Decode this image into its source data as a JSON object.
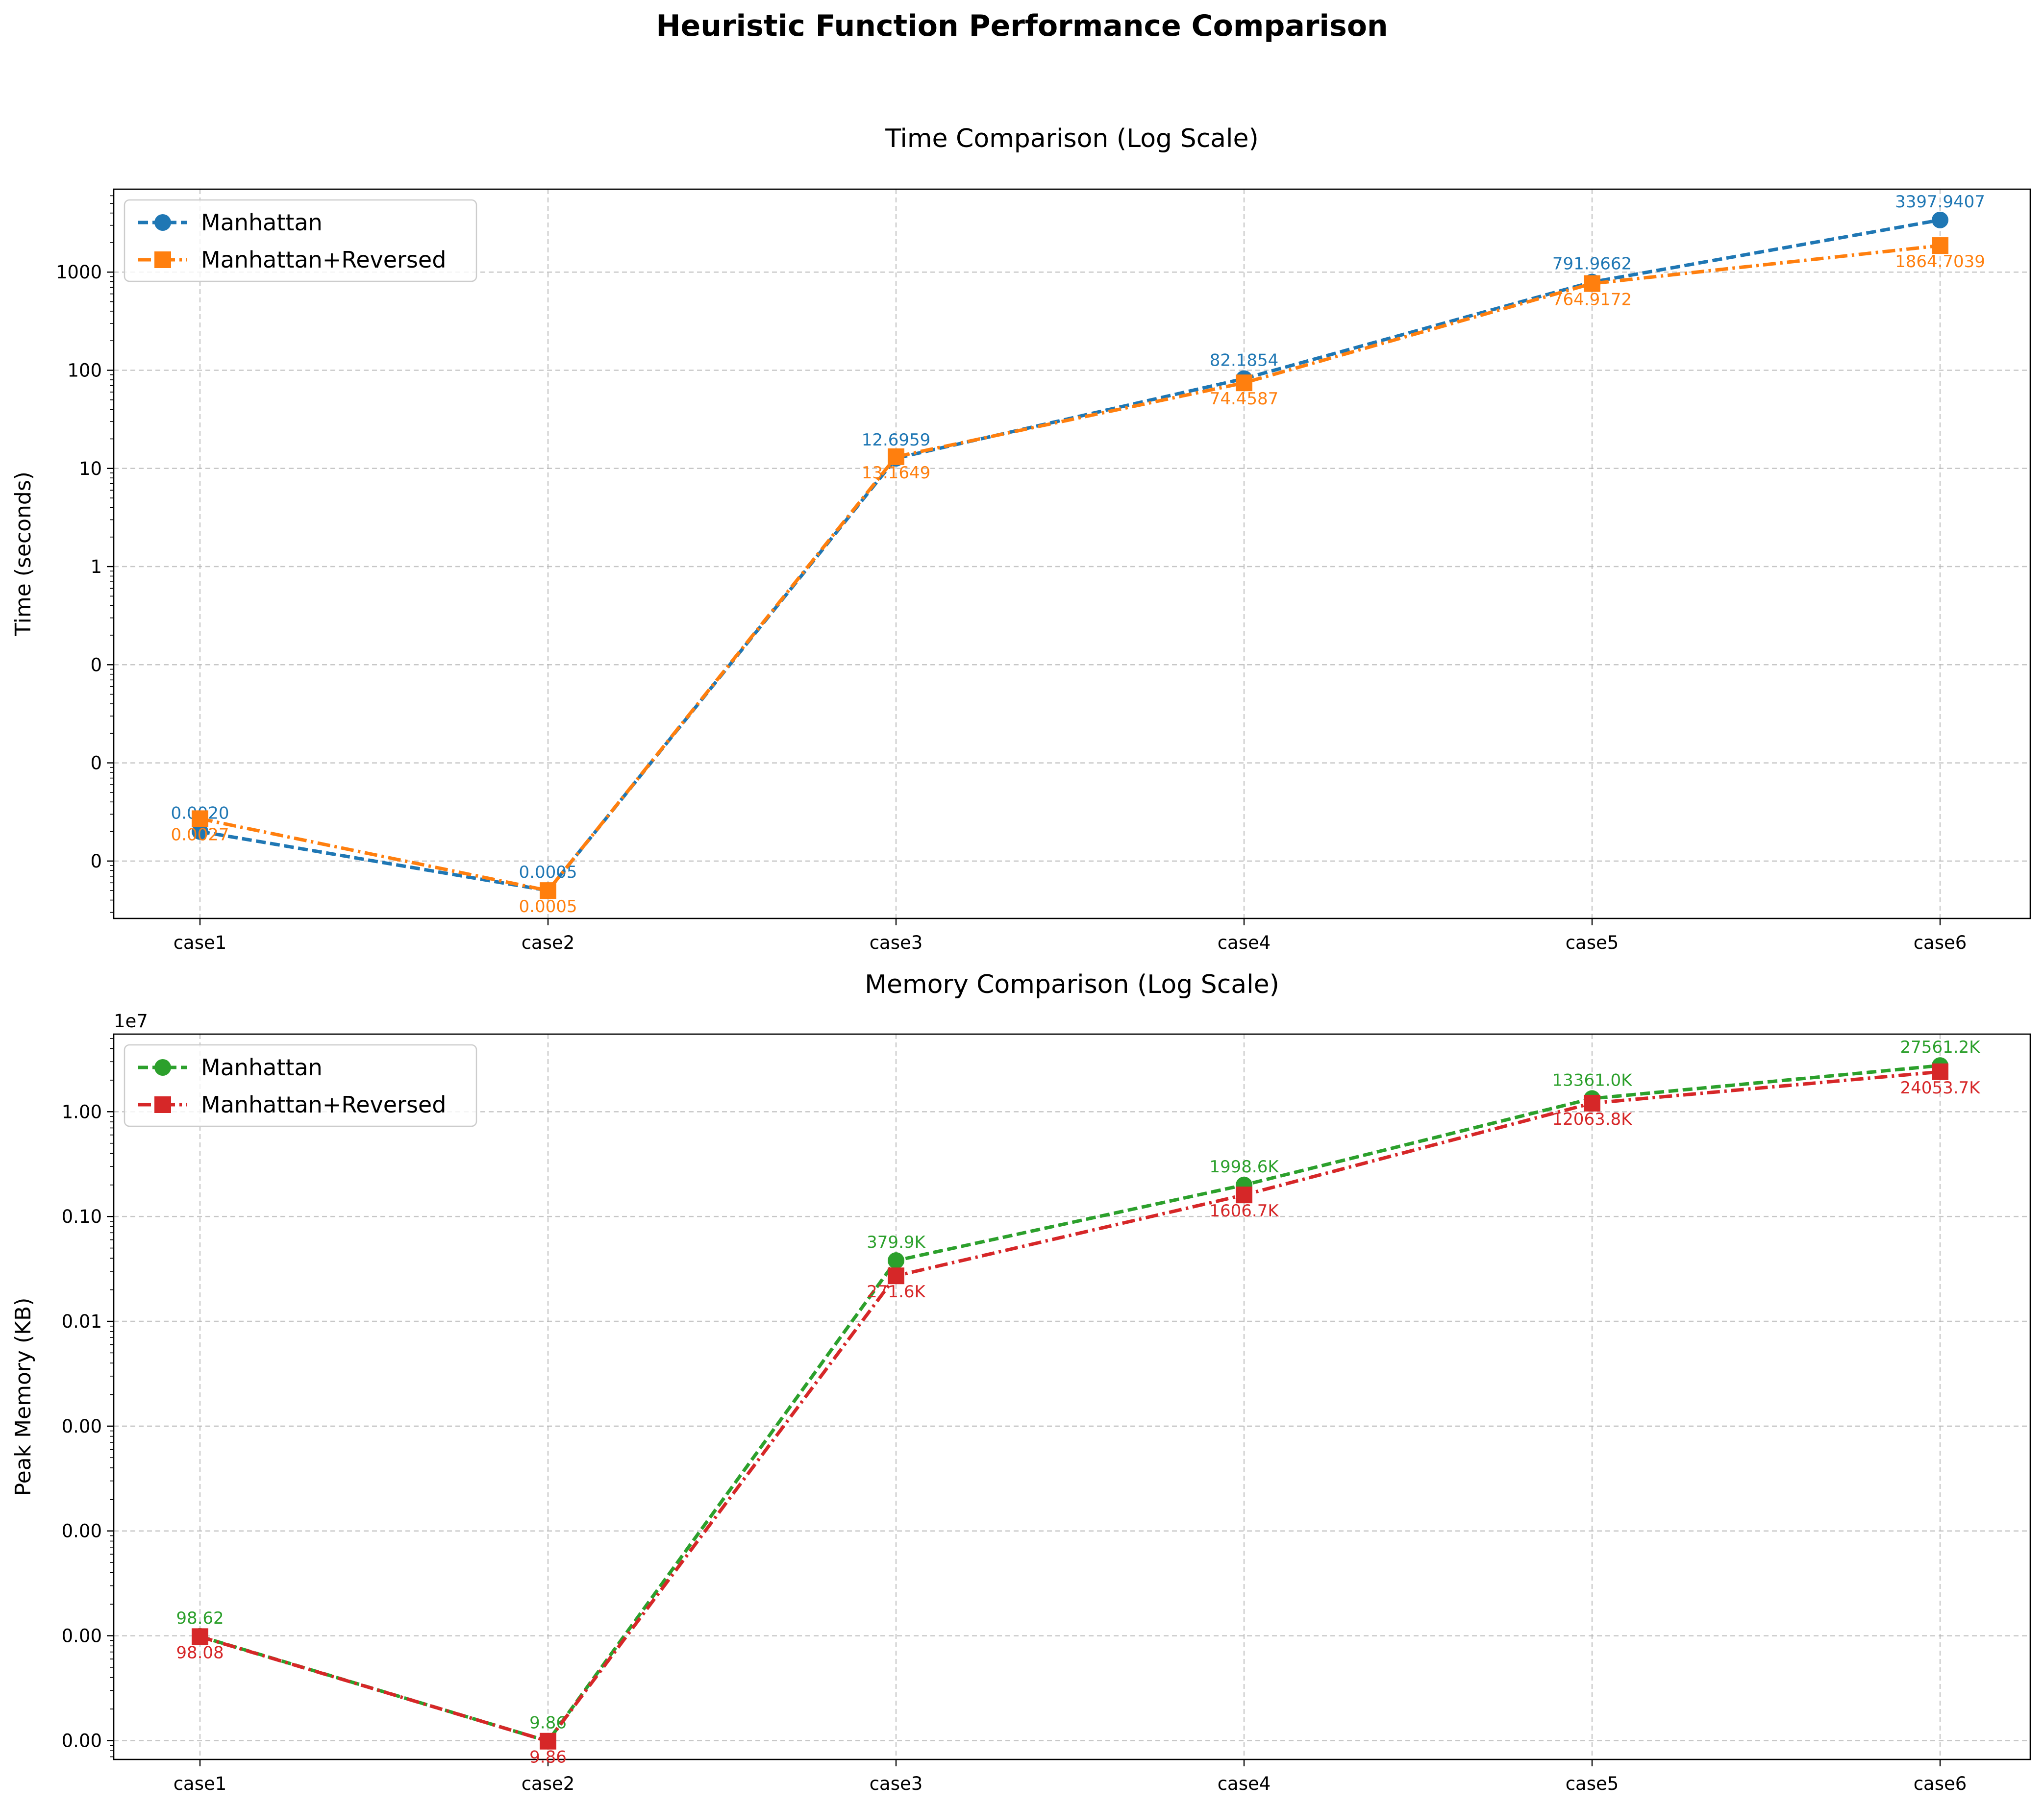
{
  "figure_title": "Heuristic Function Performance Comparison",
  "chart_data": [
    {
      "type": "line",
      "title": "Time Comparison (Log Scale)",
      "xlabel": "",
      "ylabel": "Time (seconds)",
      "y_scale": "log",
      "categories": [
        "case1",
        "case2",
        "case3",
        "case4",
        "case5",
        "case6"
      ],
      "y_tick_labels": [
        "0",
        "0",
        "0",
        "1",
        "10",
        "100",
        "1000"
      ],
      "grid": true,
      "legend_position": "upper-left",
      "series": [
        {
          "name": "Manhattan",
          "color": "#1f77b4",
          "marker": "circle",
          "line_style": "dashed",
          "values": [
            0.002,
            0.0005,
            12.6959,
            82.1854,
            791.9662,
            3397.9407
          ],
          "labels": [
            "0.0020",
            "0.0005",
            "12.6959",
            "82.1854",
            "791.9662",
            "3397.9407"
          ]
        },
        {
          "name": "Manhattan+Reversed",
          "color": "#ff7f0e",
          "marker": "square",
          "line_style": "dash-dot",
          "values": [
            0.0027,
            0.0005,
            13.1649,
            74.4587,
            764.9172,
            1864.7039
          ],
          "labels": [
            "0.0027",
            "0.0005",
            "13.1649",
            "74.4587",
            "764.9172",
            "1864.7039"
          ]
        }
      ]
    },
    {
      "type": "line",
      "title": "Memory Comparison (Log Scale)",
      "xlabel": "",
      "ylabel": "Peak Memory (KB)",
      "y_scale": "log",
      "y_offset_text": "1e7",
      "categories": [
        "case1",
        "case2",
        "case3",
        "case4",
        "case5",
        "case6"
      ],
      "y_tick_labels": [
        "0.00",
        "0.00",
        "0.00",
        "0.00",
        "0.01",
        "0.10",
        "1.00"
      ],
      "grid": true,
      "legend_position": "upper-left",
      "series": [
        {
          "name": "Manhattan",
          "color": "#2ca02c",
          "marker": "circle",
          "line_style": "dashed",
          "values": [
            98.62,
            9.86,
            379900,
            1998600,
            13361000,
            27561200
          ],
          "labels": [
            "98.62",
            "9.86",
            "379.9K",
            "1998.6K",
            "13361.0K",
            "27561.2K"
          ]
        },
        {
          "name": "Manhattan+Reversed",
          "color": "#d62728",
          "marker": "square",
          "line_style": "dash-dot",
          "values": [
            98.08,
            9.86,
            271600,
            1606700,
            12063800,
            24053700
          ],
          "labels": [
            "98.08",
            "9.86",
            "271.6K",
            "1606.7K",
            "12063.8K",
            "24053.7K"
          ]
        }
      ]
    }
  ]
}
